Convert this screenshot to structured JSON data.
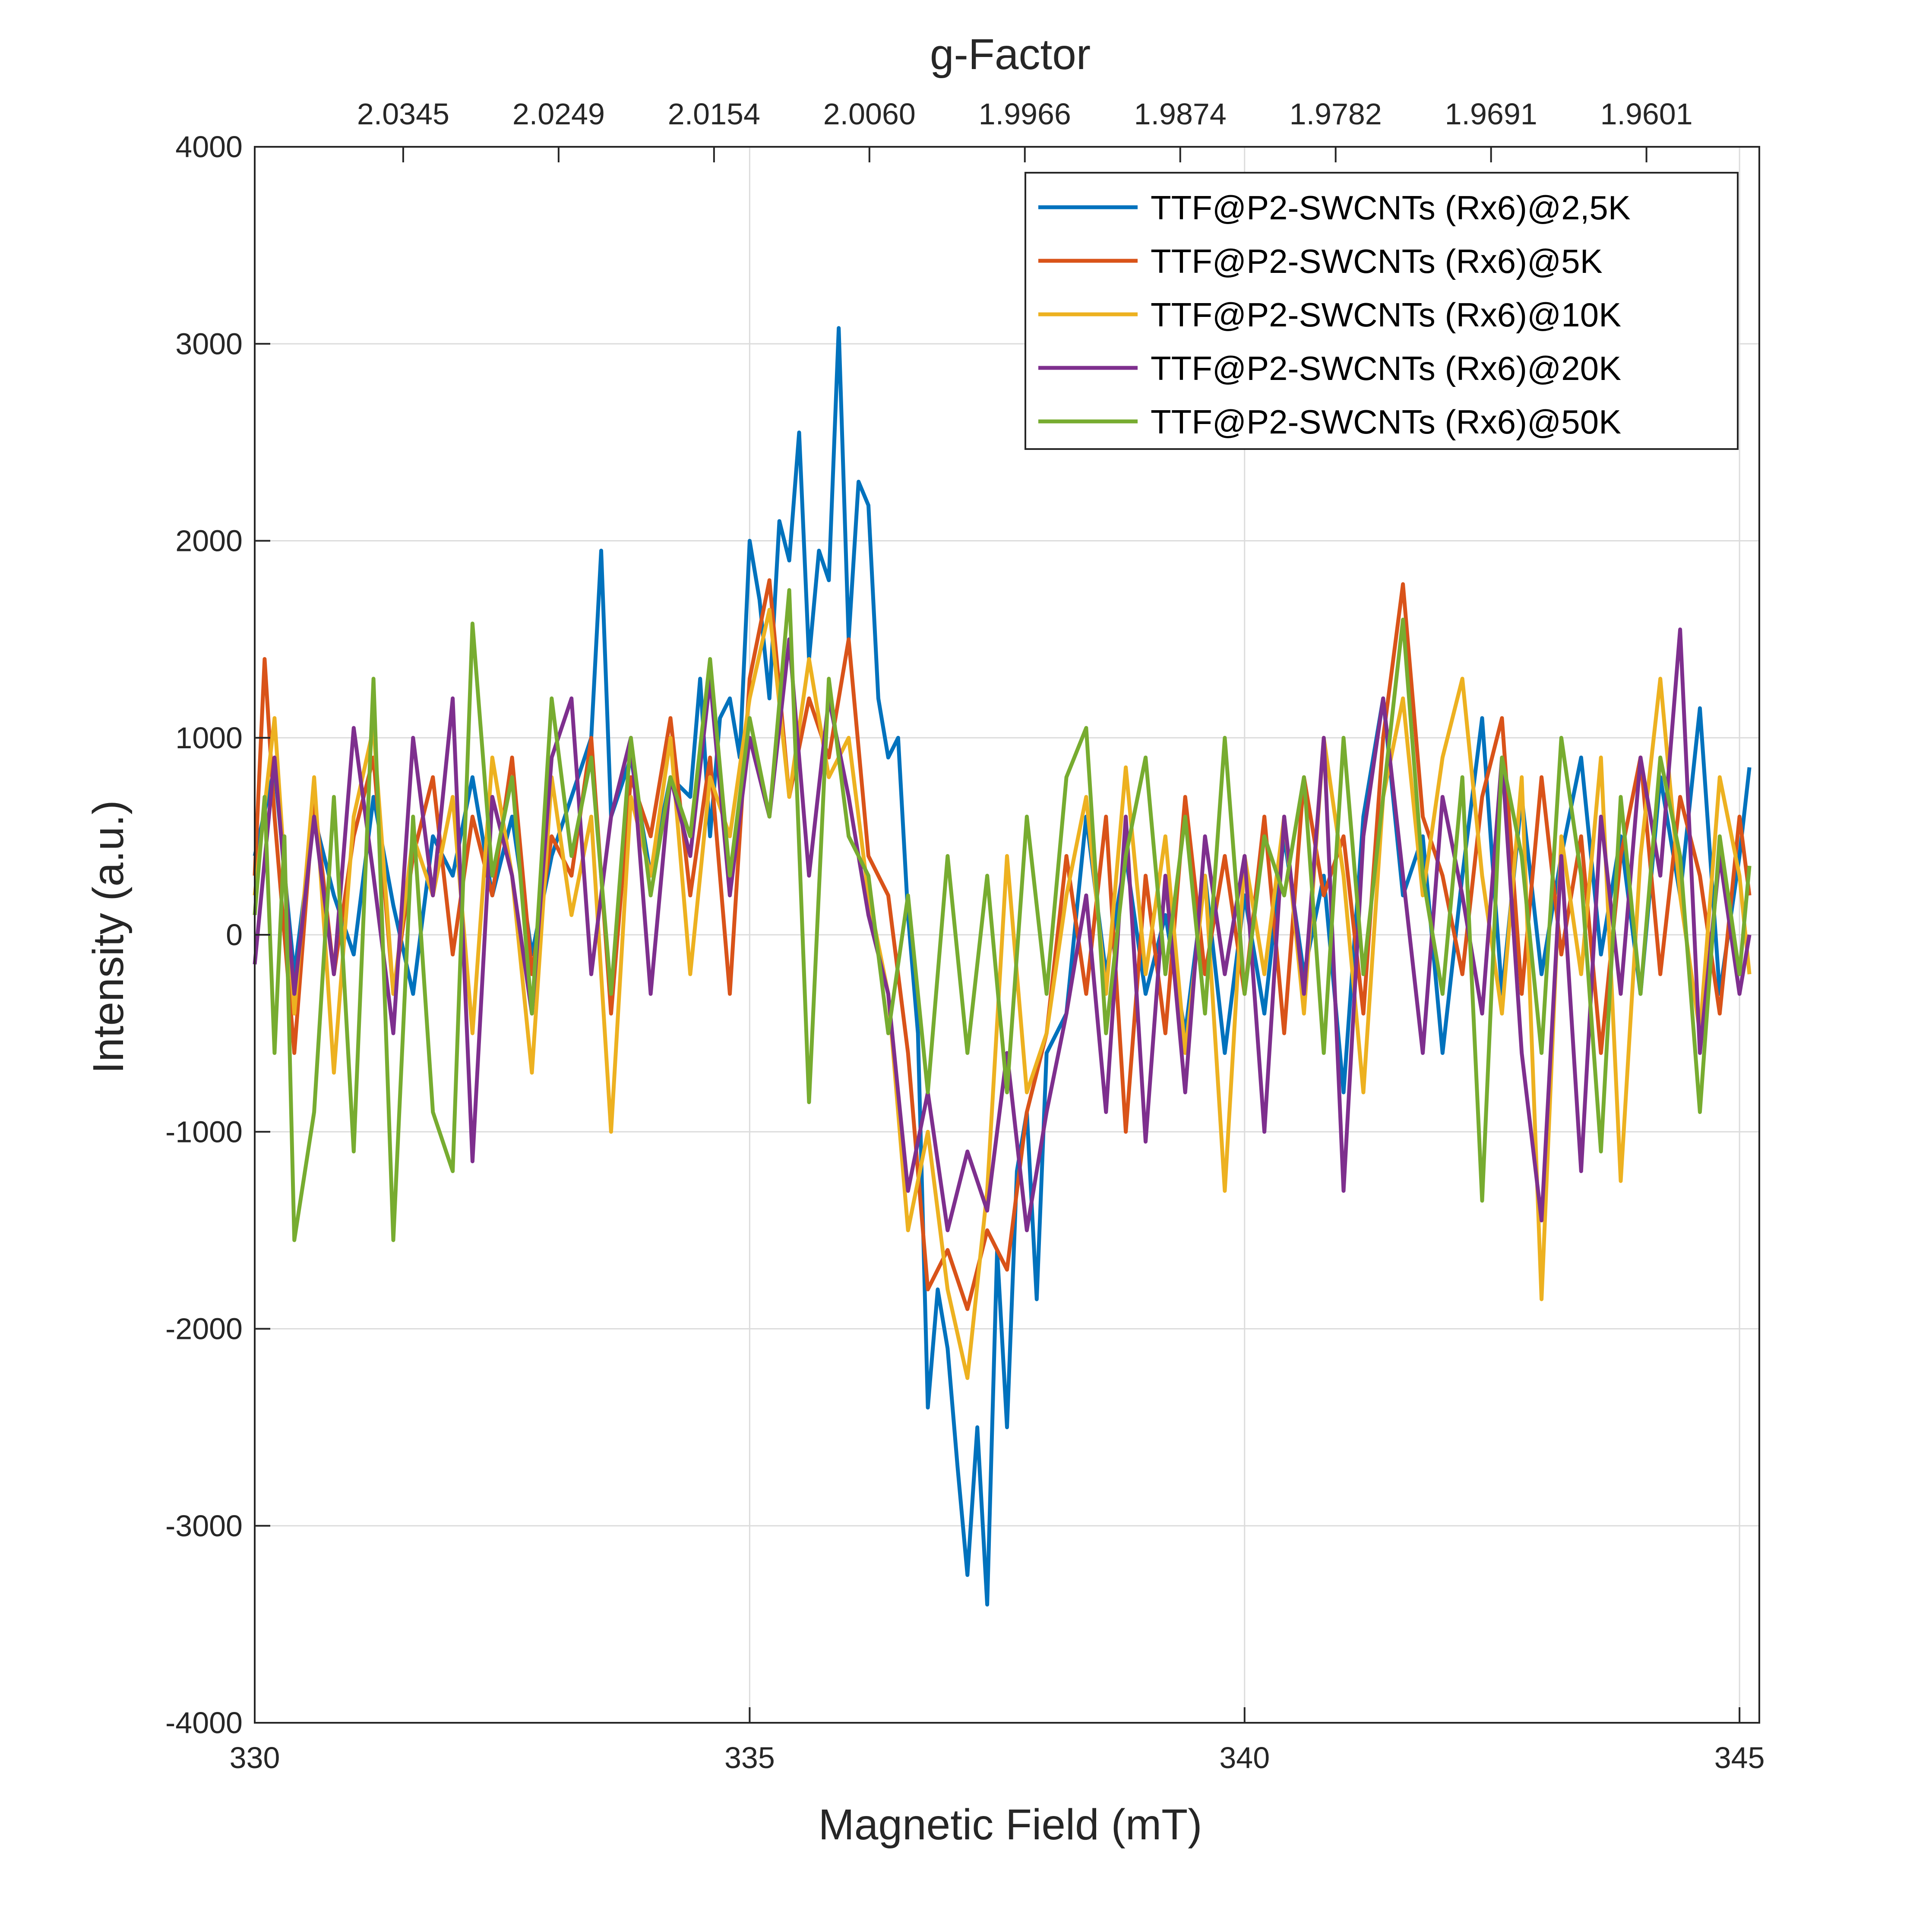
{
  "chart_data": {
    "type": "line",
    "title": "",
    "xlabel": "Magnetic Field (mT)",
    "ylabel": "Intensity (a.u.)",
    "top_axis_label": "g-Factor",
    "xlim": [
      330,
      345.2
    ],
    "ylim": [
      -4000,
      4000
    ],
    "x_ticks": [
      330,
      335,
      340,
      345
    ],
    "x_tick_labels": [
      "330",
      "335",
      "340",
      "345"
    ],
    "y_ticks": [
      4000,
      3000,
      2000,
      1000,
      0,
      -1000,
      -2000,
      -3000,
      -4000
    ],
    "y_tick_labels": [
      "4000",
      "3000",
      "2000",
      "1000",
      "0",
      "-1000",
      "-2000",
      "-3000",
      "-4000"
    ],
    "top_ticks": [
      {
        "field": 331.5,
        "label": "2.0345"
      },
      {
        "field": 333.07,
        "label": "2.0249"
      },
      {
        "field": 334.64,
        "label": "2.0154"
      },
      {
        "field": 336.21,
        "label": "2.0060"
      },
      {
        "field": 337.78,
        "label": "1.9966"
      },
      {
        "field": 339.35,
        "label": "1.9874"
      },
      {
        "field": 340.92,
        "label": "1.9782"
      },
      {
        "field": 342.49,
        "label": "1.9691"
      },
      {
        "field": 344.06,
        "label": "1.9601"
      }
    ],
    "grid": true,
    "legend_position": "top-right",
    "series": [
      {
        "name": "TTF@P2-SWCNTs (Rx6)@2,5K",
        "color": "#0072BD",
        "x": [
          330.0,
          330.2,
          330.4,
          330.6,
          330.8,
          331.0,
          331.2,
          331.4,
          331.6,
          331.8,
          332.0,
          332.2,
          332.4,
          332.6,
          332.8,
          333.0,
          333.2,
          333.4,
          333.5,
          333.6,
          333.8,
          334.0,
          334.2,
          334.4,
          334.5,
          334.6,
          334.7,
          334.8,
          334.9,
          335.0,
          335.1,
          335.2,
          335.3,
          335.4,
          335.5,
          335.6,
          335.7,
          335.8,
          335.9,
          336.0,
          336.1,
          336.2,
          336.3,
          336.4,
          336.5,
          336.6,
          336.7,
          336.8,
          336.9,
          337.0,
          337.1,
          337.2,
          337.3,
          337.4,
          337.5,
          337.6,
          337.7,
          337.8,
          337.9,
          338.0,
          338.2,
          338.4,
          338.6,
          338.8,
          339.0,
          339.2,
          339.4,
          339.6,
          339.8,
          340.0,
          340.2,
          340.4,
          340.6,
          340.8,
          341.0,
          341.2,
          341.4,
          341.6,
          341.8,
          342.0,
          342.2,
          342.4,
          342.6,
          342.8,
          343.0,
          343.2,
          343.4,
          343.6,
          343.8,
          344.0,
          344.2,
          344.4,
          344.6,
          344.8,
          345.0,
          345.1
        ],
        "y": [
          400,
          850,
          -200,
          600,
          200,
          -100,
          700,
          150,
          -300,
          500,
          300,
          800,
          200,
          600,
          -100,
          400,
          700,
          1000,
          1950,
          600,
          900,
          300,
          800,
          700,
          1300,
          500,
          1100,
          1200,
          900,
          2000,
          1700,
          1200,
          2100,
          1900,
          2550,
          1400,
          1950,
          1800,
          3080,
          1500,
          2300,
          2180,
          1200,
          900,
          1000,
          100,
          -500,
          -2400,
          -1800,
          -2100,
          -2700,
          -3250,
          -2500,
          -3400,
          -1600,
          -2500,
          -1200,
          -900,
          -1850,
          -600,
          -400,
          600,
          -200,
          400,
          -300,
          100,
          -500,
          300,
          -600,
          200,
          -400,
          500,
          -200,
          300,
          -800,
          600,
          1200,
          200,
          500,
          -600,
          300,
          1100,
          -300,
          700,
          -200,
          400,
          900,
          -100,
          500,
          -300,
          800,
          200,
          1150,
          -300,
          400,
          850
        ]
      },
      {
        "name": "TTF@P2-SWCNTs (Rx6)@5K",
        "color": "#D95319",
        "x": [
          330.0,
          330.1,
          330.2,
          330.4,
          330.6,
          330.8,
          331.0,
          331.2,
          331.4,
          331.6,
          331.8,
          332.0,
          332.2,
          332.4,
          332.6,
          332.8,
          333.0,
          333.2,
          333.4,
          333.6,
          333.8,
          334.0,
          334.2,
          334.4,
          334.6,
          334.8,
          335.0,
          335.2,
          335.4,
          335.6,
          335.8,
          336.0,
          336.2,
          336.4,
          336.6,
          336.8,
          337.0,
          337.2,
          337.4,
          337.6,
          337.8,
          338.0,
          338.2,
          338.4,
          338.6,
          338.8,
          339.0,
          339.2,
          339.4,
          339.6,
          339.8,
          340.0,
          340.2,
          340.4,
          340.6,
          340.8,
          341.0,
          341.2,
          341.4,
          341.6,
          341.8,
          342.0,
          342.2,
          342.4,
          342.6,
          342.8,
          343.0,
          343.2,
          343.4,
          343.6,
          343.8,
          344.0,
          344.2,
          344.4,
          344.6,
          344.8,
          345.0,
          345.1
        ],
        "y": [
          300,
          1400,
          600,
          -600,
          700,
          -200,
          500,
          900,
          -300,
          400,
          800,
          -100,
          600,
          200,
          900,
          -200,
          500,
          300,
          1000,
          -400,
          800,
          500,
          1100,
          200,
          900,
          -300,
          1300,
          1800,
          700,
          1200,
          900,
          1500,
          400,
          200,
          -600,
          -1800,
          -1600,
          -1900,
          -1500,
          -1700,
          -900,
          -500,
          400,
          -300,
          600,
          -1000,
          300,
          -500,
          700,
          -200,
          400,
          -300,
          600,
          -500,
          800,
          200,
          500,
          -400,
          1000,
          1780,
          600,
          300,
          -200,
          700,
          1100,
          -300,
          800,
          -100,
          500,
          -600,
          400,
          900,
          -200,
          700,
          300,
          -400,
          600,
          200
        ]
      },
      {
        "name": "TTF@P2-SWCNTs (Rx6)@10K",
        "color": "#EDB120",
        "x": [
          330.0,
          330.2,
          330.4,
          330.6,
          330.8,
          331.0,
          331.2,
          331.4,
          331.6,
          331.8,
          332.0,
          332.2,
          332.4,
          332.6,
          332.8,
          333.0,
          333.2,
          333.4,
          333.6,
          333.8,
          334.0,
          334.2,
          334.4,
          334.6,
          334.8,
          335.0,
          335.2,
          335.4,
          335.6,
          335.8,
          336.0,
          336.2,
          336.4,
          336.6,
          336.8,
          337.0,
          337.2,
          337.4,
          337.6,
          337.8,
          338.0,
          338.2,
          338.4,
          338.6,
          338.8,
          339.0,
          339.2,
          339.4,
          339.6,
          339.8,
          340.0,
          340.2,
          340.4,
          340.6,
          340.8,
          341.0,
          341.2,
          341.4,
          341.6,
          341.8,
          342.0,
          342.2,
          342.4,
          342.6,
          342.8,
          343.0,
          343.2,
          343.4,
          343.6,
          343.8,
          344.0,
          344.2,
          344.4,
          344.6,
          344.8,
          345.0,
          345.1
        ],
        "y": [
          200,
          1100,
          -400,
          800,
          -700,
          600,
          1050,
          -300,
          500,
          200,
          700,
          -500,
          900,
          300,
          -700,
          800,
          100,
          600,
          -1000,
          700,
          300,
          1000,
          -200,
          800,
          500,
          1200,
          1650,
          700,
          1400,
          800,
          1000,
          200,
          -300,
          -1500,
          -1000,
          -1800,
          -2250,
          -1300,
          400,
          -800,
          -500,
          200,
          700,
          -300,
          850,
          -200,
          500,
          -600,
          300,
          -1300,
          400,
          -200,
          600,
          -400,
          1000,
          300,
          -800,
          700,
          1200,
          200,
          900,
          1300,
          300,
          -400,
          800,
          -1850,
          500,
          -200,
          900,
          -1250,
          400,
          1300,
          200,
          -500,
          800,
          300,
          -200
        ]
      },
      {
        "name": "TTF@P2-SWCNTs (Rx6)@20K",
        "color": "#7E2F8E",
        "x": [
          330.0,
          330.2,
          330.4,
          330.6,
          330.8,
          331.0,
          331.2,
          331.4,
          331.6,
          331.8,
          332.0,
          332.2,
          332.4,
          332.6,
          332.8,
          333.0,
          333.2,
          333.4,
          333.6,
          333.8,
          334.0,
          334.2,
          334.4,
          334.6,
          334.8,
          335.0,
          335.2,
          335.4,
          335.6,
          335.8,
          336.0,
          336.2,
          336.4,
          336.6,
          336.8,
          337.0,
          337.2,
          337.4,
          337.6,
          337.8,
          338.0,
          338.2,
          338.4,
          338.6,
          338.8,
          339.0,
          339.2,
          339.4,
          339.6,
          339.8,
          340.0,
          340.2,
          340.4,
          340.6,
          340.8,
          341.0,
          341.2,
          341.4,
          341.6,
          341.8,
          342.0,
          342.2,
          342.4,
          342.6,
          342.8,
          343.0,
          343.2,
          343.4,
          343.6,
          343.8,
          344.0,
          344.2,
          344.4,
          344.6,
          344.8,
          345.0,
          345.1
        ],
        "y": [
          -150,
          900,
          -300,
          600,
          -200,
          1050,
          300,
          -500,
          1000,
          200,
          1200,
          -1150,
          700,
          300,
          -400,
          900,
          1200,
          -200,
          600,
          1000,
          -300,
          800,
          400,
          1300,
          200,
          1000,
          600,
          1500,
          300,
          1200,
          700,
          100,
          -300,
          -1300,
          -800,
          -1500,
          -1100,
          -1400,
          -600,
          -1500,
          -900,
          -400,
          200,
          -900,
          600,
          -1050,
          300,
          -800,
          500,
          -200,
          400,
          -1000,
          600,
          -300,
          1000,
          -1300,
          500,
          1200,
          300,
          -600,
          700,
          200,
          -400,
          900,
          -600,
          -1450,
          400,
          -1200,
          600,
          -300,
          900,
          300,
          1550,
          -600,
          400,
          -300,
          0
        ]
      },
      {
        "name": "TTF@P2-SWCNTs (Rx6)@50K",
        "color": "#77AC30",
        "x": [
          330.0,
          330.1,
          330.2,
          330.3,
          330.4,
          330.6,
          330.8,
          331.0,
          331.2,
          331.4,
          331.6,
          331.8,
          332.0,
          332.2,
          332.4,
          332.6,
          332.8,
          333.0,
          333.2,
          333.4,
          333.6,
          333.8,
          334.0,
          334.2,
          334.4,
          334.6,
          334.8,
          335.0,
          335.2,
          335.4,
          335.6,
          335.8,
          336.0,
          336.2,
          336.4,
          336.6,
          336.8,
          337.0,
          337.2,
          337.4,
          337.6,
          337.8,
          338.0,
          338.2,
          338.4,
          338.6,
          338.8,
          339.0,
          339.2,
          339.4,
          339.6,
          339.8,
          340.0,
          340.2,
          340.4,
          340.6,
          340.8,
          341.0,
          341.2,
          341.4,
          341.6,
          341.8,
          342.0,
          342.2,
          342.4,
          342.6,
          342.8,
          343.0,
          343.2,
          343.4,
          343.6,
          343.8,
          344.0,
          344.2,
          344.4,
          344.6,
          344.8,
          345.0,
          345.1
        ],
        "y": [
          100,
          700,
          -600,
          500,
          -1550,
          -900,
          700,
          -1100,
          1300,
          -1550,
          600,
          -900,
          -1200,
          1580,
          300,
          800,
          -400,
          1200,
          400,
          900,
          -300,
          1000,
          200,
          800,
          500,
          1400,
          300,
          1100,
          600,
          1750,
          -850,
          1300,
          500,
          300,
          -500,
          200,
          -800,
          400,
          -600,
          300,
          -800,
          600,
          -300,
          800,
          1050,
          -500,
          400,
          900,
          -200,
          600,
          -400,
          1000,
          -300,
          500,
          200,
          800,
          -600,
          1000,
          -200,
          700,
          1600,
          300,
          -300,
          800,
          -1350,
          900,
          400,
          -600,
          1000,
          300,
          -1100,
          700,
          -300,
          900,
          400,
          -900,
          500,
          -200,
          350
        ]
      }
    ]
  }
}
